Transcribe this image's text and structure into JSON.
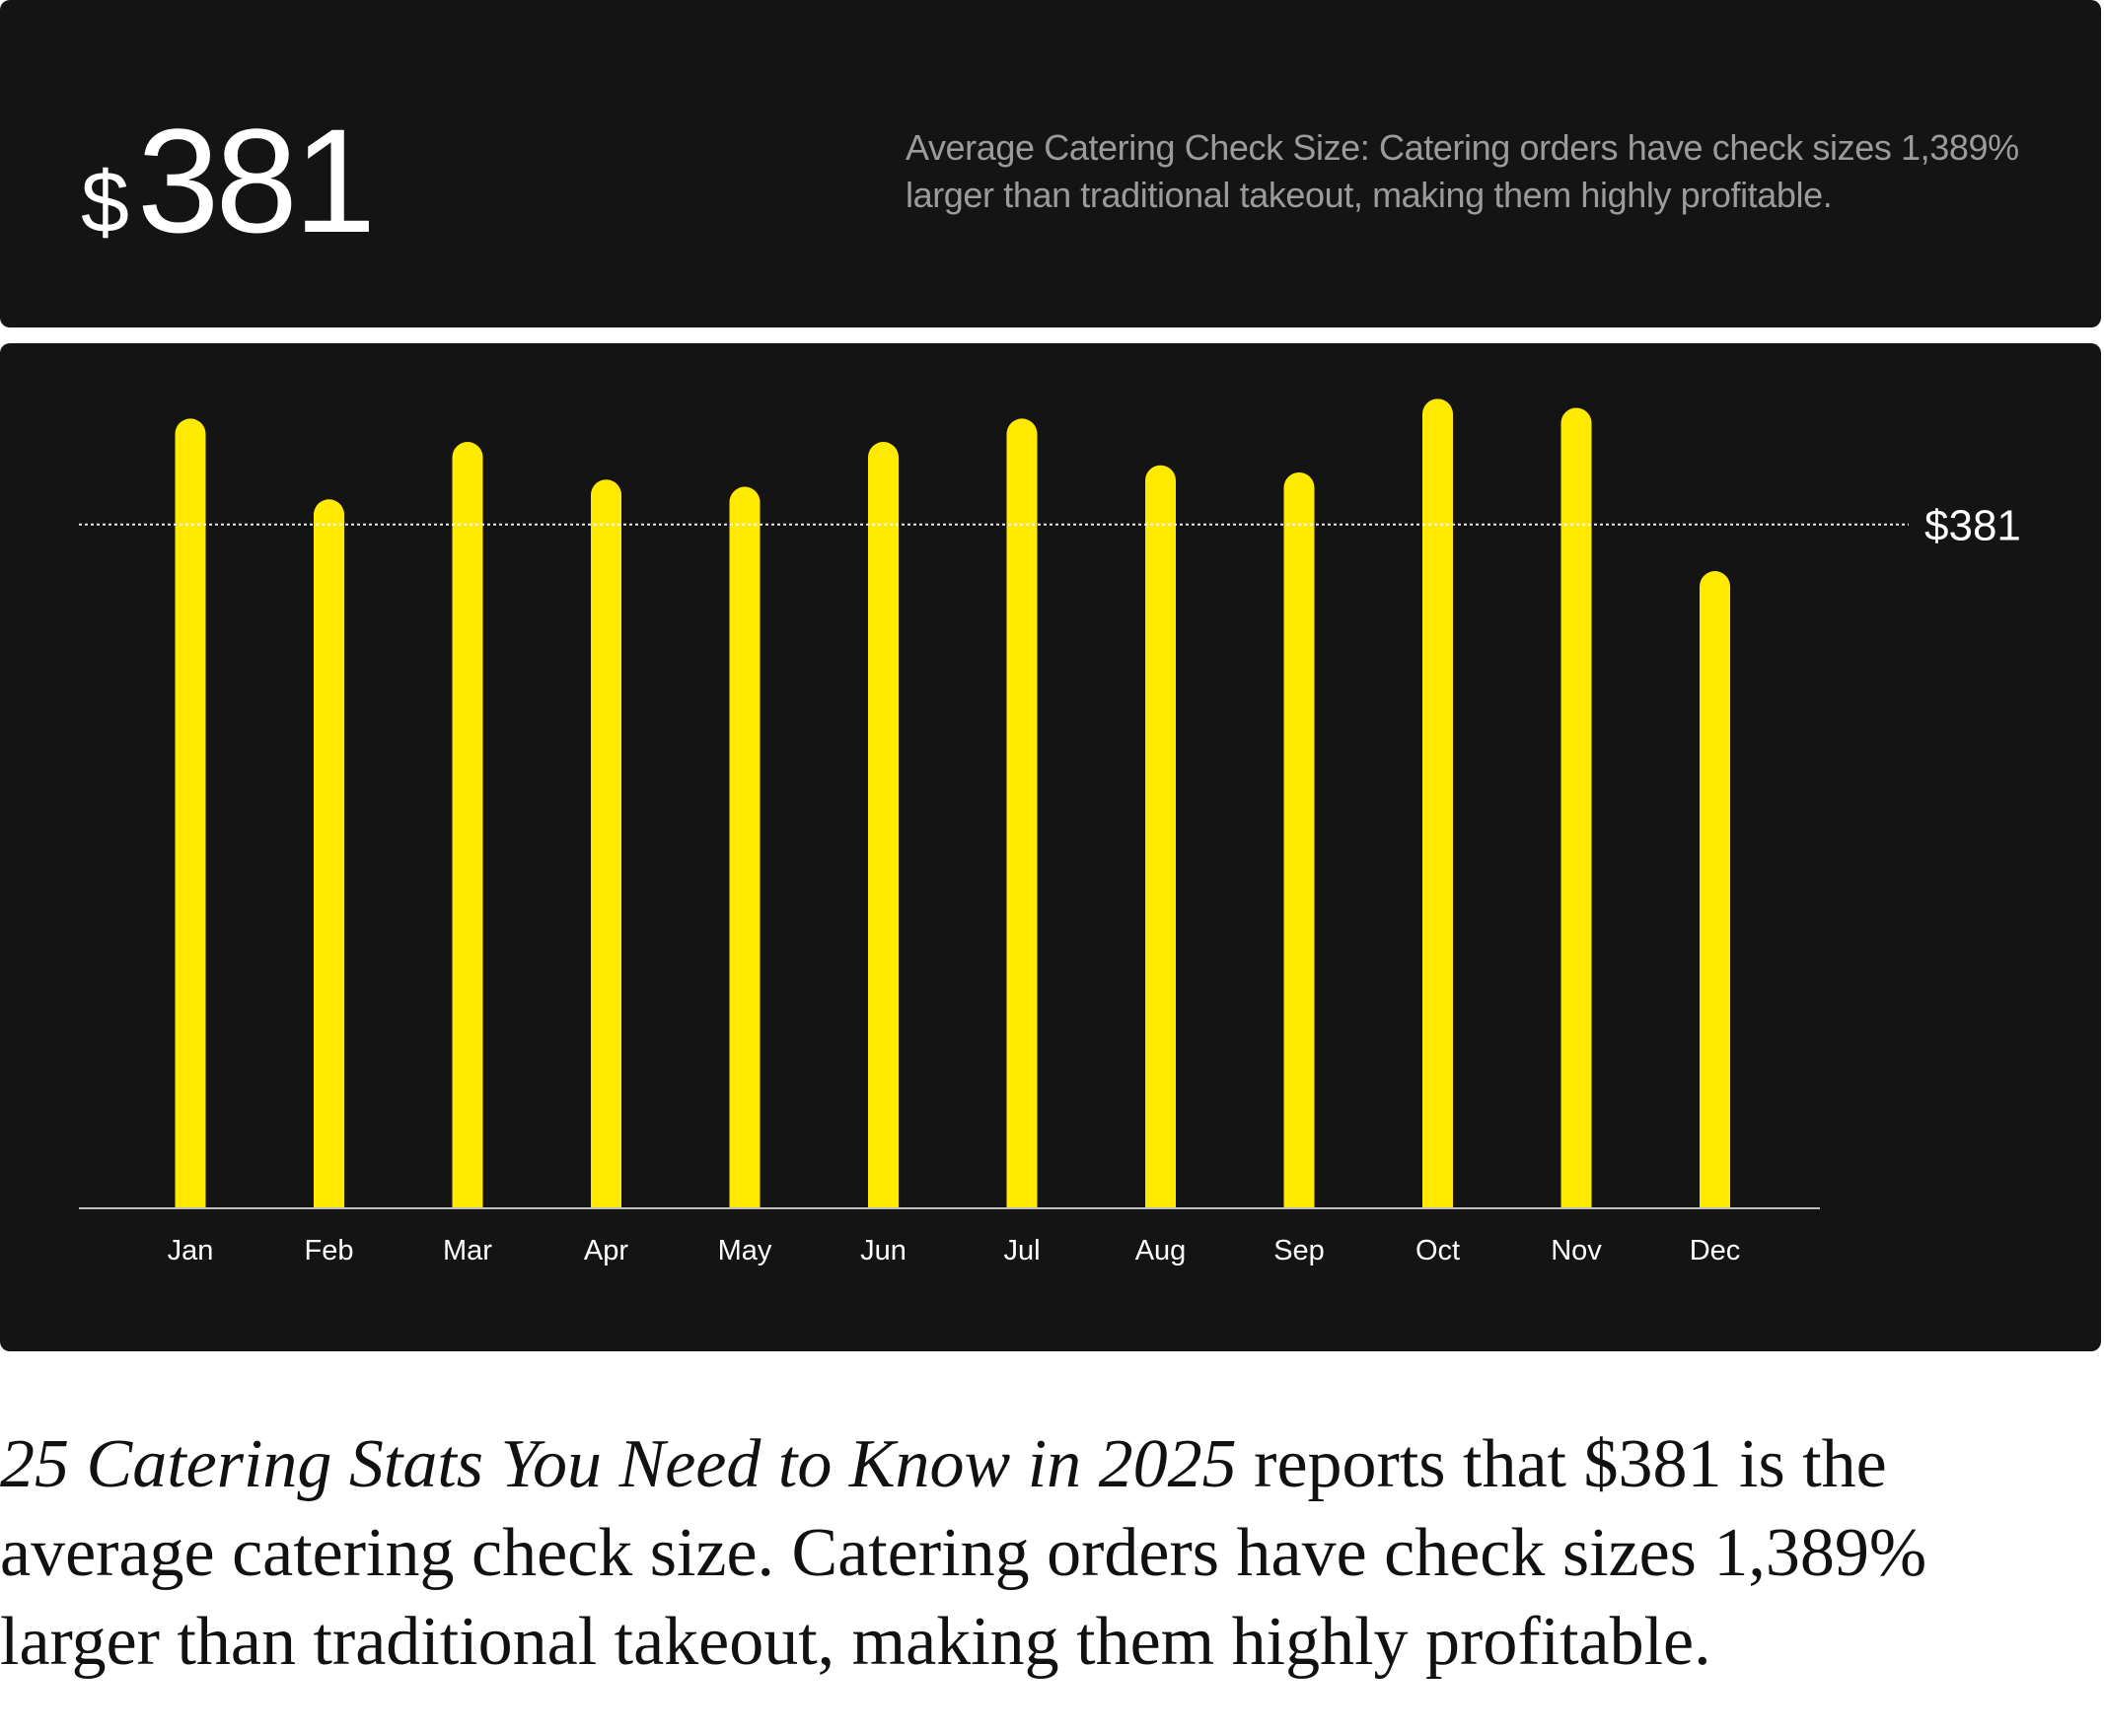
{
  "header": {
    "currency_symbol": "$",
    "stat_value": "381",
    "description": "Average Catering Check Size: Catering orders have check sizes 1,389% larger than traditional takeout, making them highly profitable."
  },
  "caption": {
    "source_title": "25 Catering Stats You Need to Know in 2025",
    "text": " reports that $381 is the average catering check size. Catering orders have check sizes 1,389% larger than traditional takeout, making them highly profitable."
  },
  "colors": {
    "background": "#141414",
    "bar": "#FFEA00",
    "reference_line": "#ffffff",
    "text_primary": "#ffffff",
    "text_secondary": "#9b9b9b"
  },
  "chart_data": {
    "type": "bar",
    "categories": [
      "Jan",
      "Feb",
      "Mar",
      "Apr",
      "May",
      "Jun",
      "Jul",
      "Aug",
      "Sep",
      "Oct",
      "Nov",
      "Dec"
    ],
    "values": [
      440,
      395,
      427,
      406,
      402,
      427,
      440,
      414,
      410,
      451,
      446,
      355
    ],
    "reference_line": {
      "value": 381,
      "label": "$381",
      "style": "dotted"
    },
    "title": "",
    "xlabel": "",
    "ylabel": "",
    "ylim": [
      0,
      460
    ],
    "grid": false
  }
}
